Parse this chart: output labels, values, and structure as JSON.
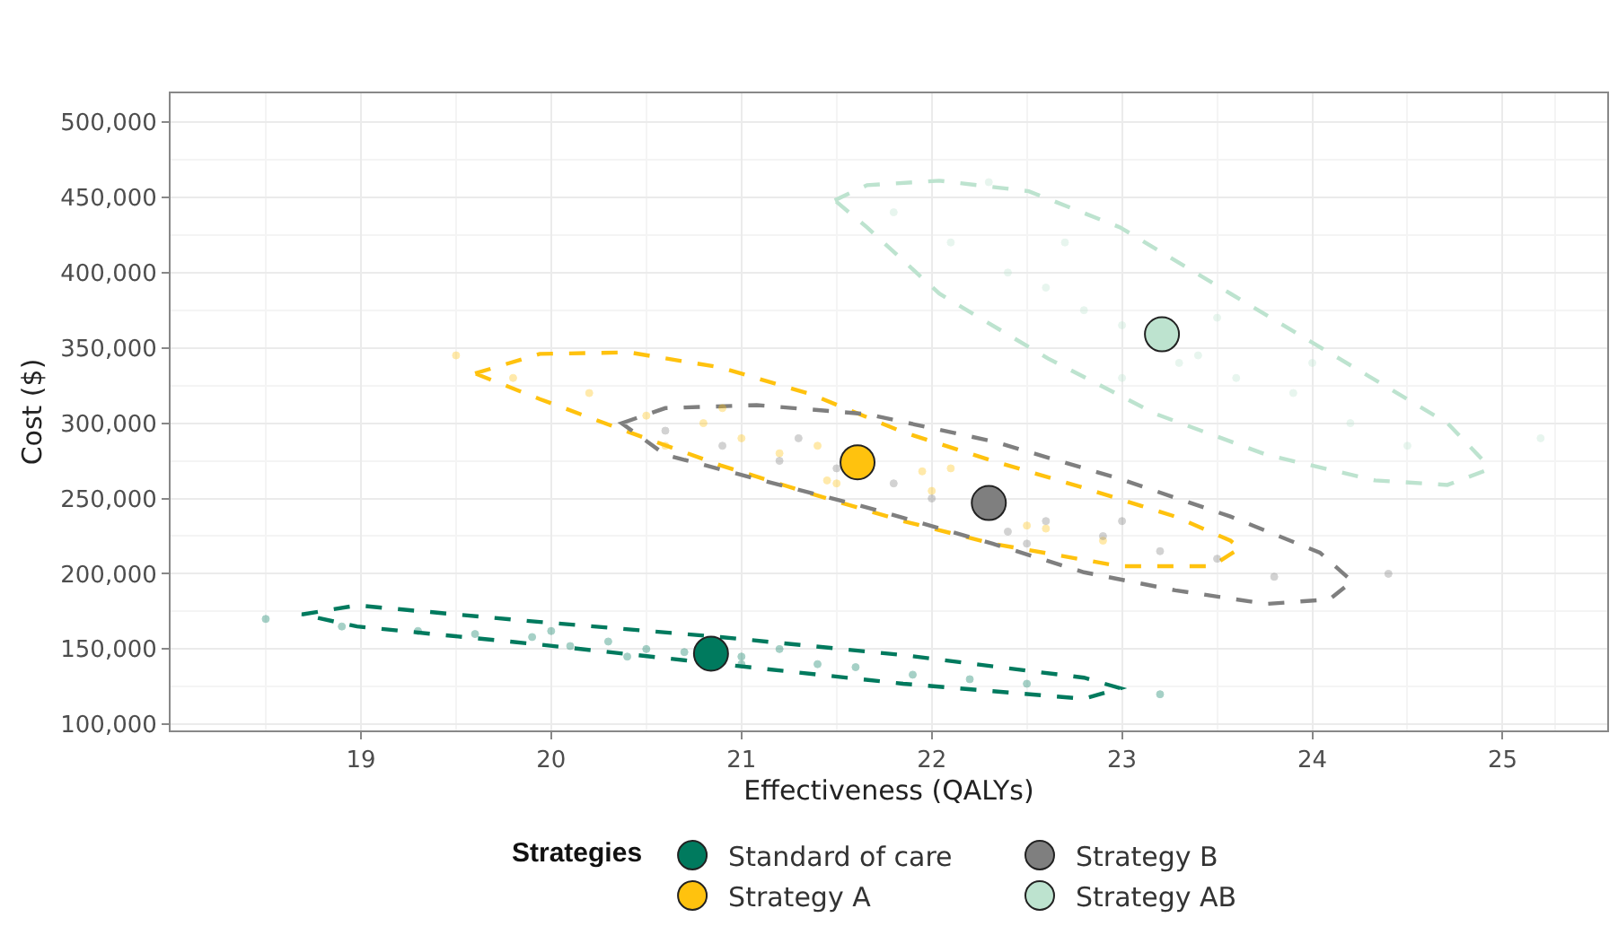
{
  "chart_data": {
    "type": "scatter",
    "xlabel": "Effectiveness (QALYs)",
    "ylabel": "Cost ($)",
    "legend_title": "Strategies",
    "legend": "bottom",
    "grid": true,
    "xlim": [
      18.0,
      25.55
    ],
    "ylim": [
      96000,
      519000
    ],
    "xticks": [
      19,
      20,
      21,
      22,
      23,
      24,
      25
    ],
    "yticks": [
      {
        "value": 100000,
        "label": "100,000"
      },
      {
        "value": 150000,
        "label": "150,000"
      },
      {
        "value": 200000,
        "label": "200,000"
      },
      {
        "value": 250000,
        "label": "250,000"
      },
      {
        "value": 300000,
        "label": "300,000"
      },
      {
        "value": 350000,
        "label": "350,000"
      },
      {
        "value": 400000,
        "label": "400,000"
      },
      {
        "value": 450000,
        "label": "450,000"
      },
      {
        "value": 500000,
        "label": "500,000"
      }
    ],
    "series": [
      {
        "marker": "circle",
        "color": "#007a5e",
        "x": [
          18.9,
          19.3,
          19.6,
          19.9,
          20.1,
          20.3,
          20.5,
          20.7,
          21.0,
          21.2,
          21.4,
          21.6,
          21.9,
          22.2,
          22.5,
          18.5,
          20.0,
          21.0,
          23.2,
          20.4
        ],
        "values": [
          165000,
          162000,
          160000,
          158000,
          152000,
          155000,
          150000,
          148000,
          145000,
          150000,
          140000,
          138000,
          133000,
          130000,
          127000,
          170000,
          162000,
          140000,
          120000,
          145000
        ]
      },
      {
        "marker": "circle",
        "color": "#ffc20e",
        "x": [
          19.8,
          20.2,
          20.5,
          20.8,
          21.0,
          21.2,
          21.4,
          21.45,
          21.95,
          22.0,
          22.5,
          22.6,
          22.9,
          20.9,
          21.5,
          19.5,
          22.1,
          20.6
        ],
        "values": [
          330000,
          320000,
          305000,
          300000,
          290000,
          280000,
          285000,
          262000,
          268000,
          255000,
          232000,
          230000,
          222000,
          310000,
          260000,
          345000,
          270000,
          285000
        ]
      },
      {
        "marker": "circle",
        "color": "#7f7f7f",
        "x": [
          20.6,
          20.9,
          21.2,
          21.5,
          21.8,
          22.0,
          22.4,
          22.6,
          22.9,
          23.2,
          23.5,
          23.8,
          21.3,
          22.5,
          23.0,
          24.4
        ],
        "values": [
          295000,
          285000,
          275000,
          270000,
          260000,
          250000,
          228000,
          235000,
          225000,
          215000,
          210000,
          198000,
          290000,
          220000,
          235000,
          200000
        ]
      },
      {
        "marker": "circle",
        "color": "#bde3cf",
        "x": [
          21.8,
          22.1,
          22.4,
          22.6,
          22.8,
          23.0,
          23.3,
          23.4,
          23.6,
          23.9,
          24.2,
          24.5,
          22.7,
          23.5,
          23.0,
          24.0,
          22.3,
          25.2
        ],
        "values": [
          440000,
          420000,
          400000,
          390000,
          375000,
          365000,
          340000,
          345000,
          330000,
          320000,
          300000,
          285000,
          420000,
          370000,
          330000,
          340000,
          460000,
          290000
        ]
      },
      {
        "marker": "circle",
        "name": "Standard of care",
        "color": "#007a5e",
        "x": [
          20.84
        ],
        "values": [
          147000
        ]
      },
      {
        "marker": "circle",
        "name": "Strategy A",
        "color": "#ffc20e",
        "x": [
          21.61
        ],
        "values": [
          274000
        ]
      },
      {
        "marker": "circle",
        "name": "Strategy B",
        "color": "#7f7f7f",
        "x": [
          22.3
        ],
        "values": [
          247000
        ]
      },
      {
        "marker": "circle",
        "name": "Strategy AB",
        "color": "#bde3cf",
        "x": [
          23.21
        ],
        "values": [
          359000
        ]
      }
    ]
  }
}
